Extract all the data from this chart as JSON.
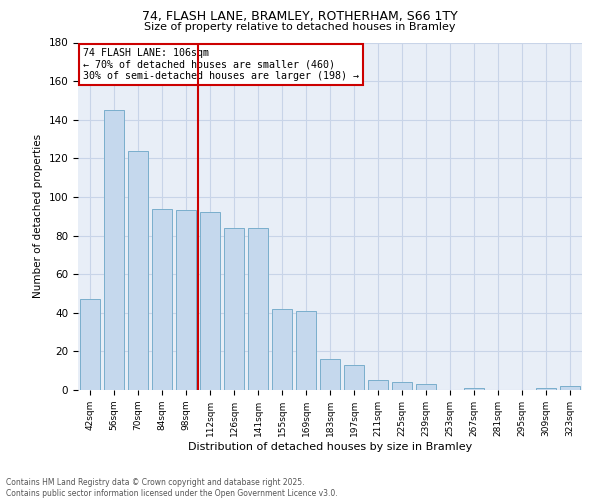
{
  "title_line1": "74, FLASH LANE, BRAMLEY, ROTHERHAM, S66 1TY",
  "title_line2": "Size of property relative to detached houses in Bramley",
  "xlabel": "Distribution of detached houses by size in Bramley",
  "ylabel": "Number of detached properties",
  "categories": [
    "42sqm",
    "56sqm",
    "70sqm",
    "84sqm",
    "98sqm",
    "112sqm",
    "126sqm",
    "141sqm",
    "155sqm",
    "169sqm",
    "183sqm",
    "197sqm",
    "211sqm",
    "225sqm",
    "239sqm",
    "253sqm",
    "267sqm",
    "281sqm",
    "295sqm",
    "309sqm",
    "323sqm"
  ],
  "values": [
    47,
    145,
    124,
    94,
    93,
    92,
    84,
    84,
    42,
    41,
    16,
    13,
    5,
    4,
    3,
    0,
    1,
    0,
    0,
    1,
    2
  ],
  "bar_color": "#c5d8ed",
  "bar_edge_color": "#7aaecc",
  "vline_color": "#cc0000",
  "annotation_text": "74 FLASH LANE: 106sqm\n← 70% of detached houses are smaller (460)\n30% of semi-detached houses are larger (198) →",
  "annotation_box_edge_color": "#cc0000",
  "ylim": [
    0,
    180
  ],
  "yticks": [
    0,
    20,
    40,
    60,
    80,
    100,
    120,
    140,
    160,
    180
  ],
  "grid_color": "#c8d4e8",
  "bg_color": "#e8eef7",
  "footer_line1": "Contains HM Land Registry data © Crown copyright and database right 2025.",
  "footer_line2": "Contains public sector information licensed under the Open Government Licence v3.0."
}
